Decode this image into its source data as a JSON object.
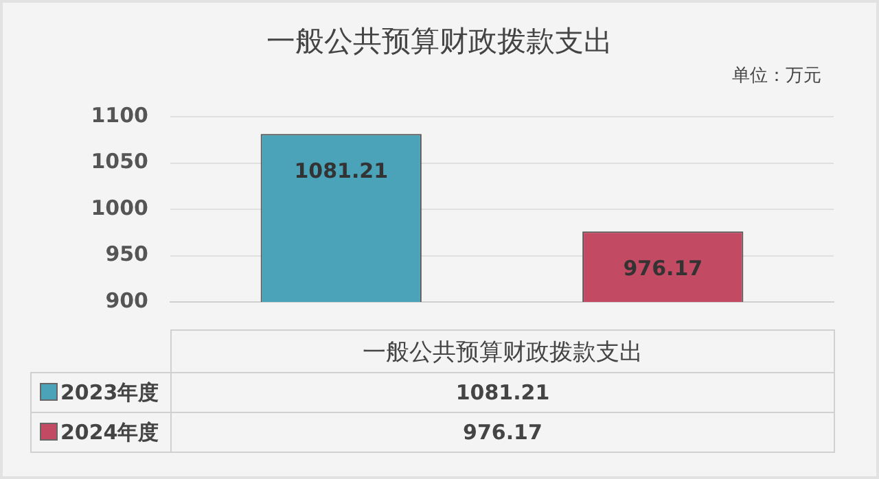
{
  "chart_data": {
    "type": "bar",
    "title": "一般公共预算财政拨款支出",
    "annotations": [
      "单位：万元",
      "1081.21",
      "976.17"
    ],
    "categories": [
      "一般公共预算财政拨款支出"
    ],
    "series": [
      {
        "name": "2023年度",
        "color": "#4aa3b8",
        "values": [
          1081.21
        ]
      },
      {
        "name": "2024年度",
        "color": "#c24a62",
        "values": [
          976.17
        ]
      }
    ],
    "ylim": [
      900,
      1100
    ],
    "yticks": [
      900,
      950,
      1000,
      1050,
      1100
    ],
    "grid": "y",
    "legend": "bottom left",
    "data_labels": true
  }
}
